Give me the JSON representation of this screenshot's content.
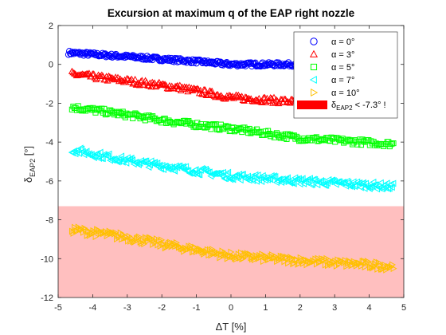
{
  "chart_data": {
    "type": "scatter",
    "title": "Excursion at maximum q of the EAP right nozzle",
    "xlabel": "ΔT [%]",
    "ylabel": {
      "symbol": "δ",
      "sub": "EAP2",
      "unit": " [°]"
    },
    "xlim": [
      -5,
      5
    ],
    "ylim": [
      -12,
      2
    ],
    "xticks": [
      -5,
      -4,
      -3,
      -2,
      -1,
      0,
      1,
      2,
      3,
      4,
      5
    ],
    "yticks": [
      2,
      0,
      -2,
      -4,
      -6,
      -8,
      -10,
      -12
    ],
    "grid": false,
    "legend_position": "top-right",
    "threshold": {
      "value": -7.3,
      "color": "#ffbfbf",
      "label_prefix": "δ",
      "label_sub": "EAP2",
      "label_suffix": " < -7.3° !"
    },
    "series": [
      {
        "name": "α = 0°",
        "marker": "circle",
        "color": "#0000ff",
        "x": [
          -4.7,
          -3.0,
          -1.0,
          0.0,
          1.5,
          2.0
        ],
        "y": [
          0.6,
          0.4,
          0.15,
          0.0,
          0.0,
          0.0
        ],
        "spread": 0.1
      },
      {
        "name": "α = 3°",
        "marker": "triangle-up",
        "color": "#ff0000",
        "x": [
          -4.6,
          -3.0,
          -1.5,
          0.0,
          2.0,
          4.0
        ],
        "y": [
          -0.5,
          -0.85,
          -1.2,
          -1.7,
          -1.95,
          -2.2
        ],
        "spread": 0.15
      },
      {
        "name": "α = 5°",
        "marker": "square",
        "color": "#00ff00",
        "x": [
          -4.6,
          -3.0,
          -1.5,
          0.0,
          2.0,
          4.7
        ],
        "y": [
          -2.2,
          -2.6,
          -3.0,
          -3.3,
          -3.8,
          -4.1
        ],
        "spread": 0.15
      },
      {
        "name": "α = 7°",
        "marker": "triangle-left",
        "color": "#00ffff",
        "x": [
          -4.6,
          -3.0,
          -1.5,
          0.0,
          2.0,
          4.7
        ],
        "y": [
          -4.4,
          -4.95,
          -5.35,
          -5.75,
          -6.0,
          -6.3
        ],
        "spread": 0.18
      },
      {
        "name": "α = 10°",
        "marker": "triangle-right",
        "color": "#ffc000",
        "x": [
          -4.6,
          -3.0,
          -1.5,
          0.0,
          2.0,
          4.7
        ],
        "y": [
          -8.5,
          -8.9,
          -9.4,
          -9.85,
          -10.1,
          -10.4
        ],
        "spread": 0.2
      }
    ]
  }
}
